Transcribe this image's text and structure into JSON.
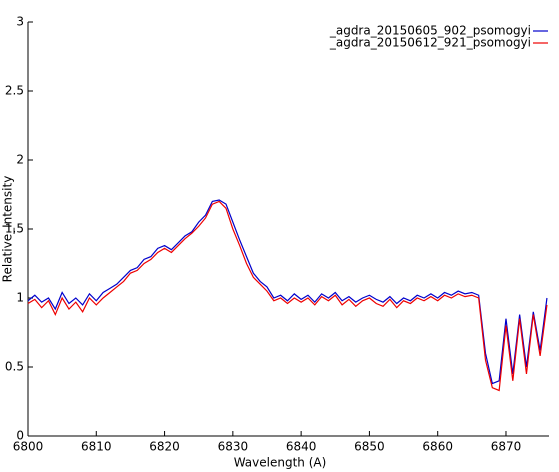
{
  "chart_data": {
    "type": "line",
    "xlabel": "Wavelength (A)",
    "ylabel": "Relative_Intensity",
    "x": [
      6800,
      6801,
      6802,
      6803,
      6804,
      6805,
      6806,
      6807,
      6808,
      6809,
      6810,
      6811,
      6812,
      6813,
      6814,
      6815,
      6816,
      6817,
      6818,
      6819,
      6820,
      6821,
      6822,
      6823,
      6824,
      6825,
      6826,
      6827,
      6828,
      6829,
      6830,
      6831,
      6832,
      6833,
      6834,
      6835,
      6836,
      6837,
      6838,
      6839,
      6840,
      6841,
      6842,
      6843,
      6844,
      6845,
      6846,
      6847,
      6848,
      6849,
      6850,
      6851,
      6852,
      6853,
      6854,
      6855,
      6856,
      6857,
      6858,
      6859,
      6860,
      6861,
      6862,
      6863,
      6864,
      6865,
      6866,
      6867,
      6868,
      6869,
      6870,
      6871,
      6872,
      6873,
      6874,
      6875,
      6876
    ],
    "series": [
      {
        "name": "_agdra_20150605_902_psomogyi",
        "color": "#0000cc",
        "values": [
          0.98,
          1.02,
          0.97,
          1.0,
          0.92,
          1.04,
          0.96,
          1.0,
          0.95,
          1.03,
          0.98,
          1.04,
          1.07,
          1.1,
          1.15,
          1.2,
          1.22,
          1.28,
          1.3,
          1.36,
          1.38,
          1.35,
          1.4,
          1.45,
          1.48,
          1.55,
          1.6,
          1.7,
          1.71,
          1.68,
          1.55,
          1.42,
          1.3,
          1.18,
          1.12,
          1.08,
          1.0,
          1.02,
          0.98,
          1.03,
          0.99,
          1.02,
          0.97,
          1.03,
          1.0,
          1.04,
          0.98,
          1.01,
          0.97,
          1.0,
          1.02,
          0.99,
          0.97,
          1.01,
          0.96,
          1.0,
          0.98,
          1.02,
          1.0,
          1.03,
          1.0,
          1.04,
          1.02,
          1.05,
          1.03,
          1.04,
          1.02,
          0.6,
          0.38,
          0.4,
          0.85,
          0.45,
          0.88,
          0.5,
          0.9,
          0.62,
          1.0
        ]
      },
      {
        "name": "_agdra_20150612_921_psomogyi",
        "color": "#ee0000",
        "values": [
          0.96,
          0.99,
          0.93,
          0.98,
          0.88,
          1.0,
          0.92,
          0.97,
          0.9,
          1.0,
          0.95,
          1.0,
          1.04,
          1.08,
          1.12,
          1.18,
          1.2,
          1.25,
          1.28,
          1.33,
          1.36,
          1.33,
          1.38,
          1.43,
          1.47,
          1.52,
          1.58,
          1.68,
          1.7,
          1.65,
          1.5,
          1.38,
          1.25,
          1.15,
          1.1,
          1.05,
          0.98,
          1.0,
          0.96,
          1.0,
          0.97,
          1.0,
          0.95,
          1.01,
          0.98,
          1.02,
          0.95,
          0.99,
          0.94,
          0.98,
          1.0,
          0.96,
          0.94,
          0.99,
          0.93,
          0.98,
          0.96,
          1.0,
          0.98,
          1.01,
          0.98,
          1.02,
          1.0,
          1.03,
          1.01,
          1.02,
          1.0,
          0.55,
          0.35,
          0.33,
          0.8,
          0.4,
          0.85,
          0.45,
          0.88,
          0.58,
          0.95
        ]
      }
    ],
    "xlim": [
      6800,
      6876.3
    ],
    "ylim": [
      0,
      3
    ],
    "xticks": [
      6800,
      6810,
      6820,
      6830,
      6840,
      6850,
      6860,
      6870
    ],
    "yticks": [
      0,
      0.5,
      1,
      1.5,
      2,
      2.5,
      3
    ],
    "legend": "top-right"
  }
}
